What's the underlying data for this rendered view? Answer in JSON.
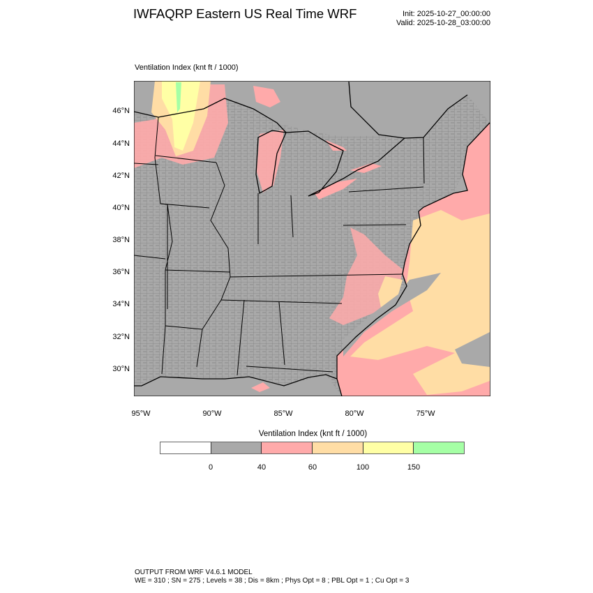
{
  "header": {
    "title": "IWFAQRP Eastern US Real Time WRF",
    "init": "Init: 2025-10-27_00:00:00",
    "valid": "Valid: 2025-10-28_03:00:00"
  },
  "plot": {
    "subtitle": "Ventilation Index   (knt ft / 1000)",
    "lat_labels": [
      "46°N",
      "44°N",
      "42°N",
      "40°N",
      "38°N",
      "36°N",
      "34°N",
      "32°N",
      "30°N"
    ],
    "lon_labels": [
      "95°W",
      "90°W",
      "85°W",
      "80°W",
      "75°W"
    ]
  },
  "colorbar": {
    "title": "Ventilation Index  (knt ft / 1000)",
    "colors": [
      "#ffffff",
      "#a9a9a9",
      "#ffaaaa",
      "#ffdda5",
      "#ffffa5",
      "#a5ffa5"
    ],
    "labels": [
      "0",
      "40",
      "60",
      "100",
      "150"
    ]
  },
  "footer": {
    "line1": "OUTPUT FROM WRF V4.6.1 MODEL",
    "line2": "WE = 310 ; SN = 275 ; Levels = 38 ; Dis = 8km ; Phys Opt = 8 ; PBL Opt = 1 ; Cu Opt = 3"
  }
}
